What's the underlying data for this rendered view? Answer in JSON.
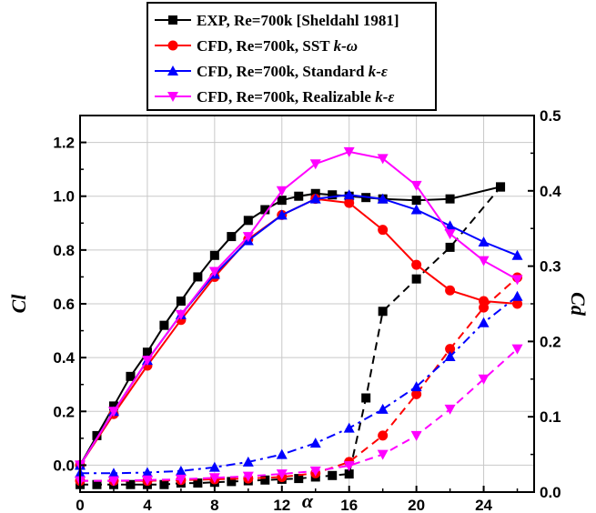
{
  "chart_data": {
    "type": "line",
    "xlabel": "α",
    "ylabel": "Cl",
    "y2label": "Cd",
    "xlim": [
      0,
      27
    ],
    "ylim": [
      -0.1,
      1.3
    ],
    "y2lim": [
      0,
      0.5
    ],
    "x_ticks": [
      0,
      4,
      8,
      12,
      16,
      20,
      24
    ],
    "x_minor_ticks": [
      2,
      6,
      10,
      14,
      18,
      22,
      26
    ],
    "y_ticks": [
      0.0,
      0.2,
      0.4,
      0.6,
      0.8,
      1.0,
      1.2
    ],
    "y2_ticks": [
      0.0,
      0.1,
      0.2,
      0.3,
      0.4,
      0.5
    ],
    "grid": true,
    "legend_position": "top-center",
    "legend": [
      {
        "prefix": "EXP, Re=700k [Sheldahl 1981]",
        "model": "",
        "color": "#000000",
        "marker": "square"
      },
      {
        "prefix": "CFD, Re=700k, SST ",
        "model": "k-ω",
        "color": "#ff0000",
        "marker": "circle"
      },
      {
        "prefix": "CFD, Re=700k, Standard ",
        "model": "k-ε",
        "color": "#0000ff",
        "marker": "triangle-up"
      },
      {
        "prefix": "CFD, Re=700k, Realizable ",
        "model": "k-ε",
        "color": "#ff00ff",
        "marker": "triangle-down"
      }
    ],
    "series": [
      {
        "key": "exp_cl",
        "axis": "left",
        "style": "solid",
        "color": "#000000",
        "marker": "square",
        "x": [
          0,
          1,
          2,
          3,
          4,
          5,
          6,
          7,
          8,
          9,
          10,
          11,
          12,
          13,
          14,
          15,
          16,
          17,
          18,
          20,
          22,
          25
        ],
        "y": [
          0.0,
          0.11,
          0.22,
          0.33,
          0.42,
          0.52,
          0.61,
          0.7,
          0.78,
          0.85,
          0.91,
          0.95,
          0.985,
          1.0,
          1.01,
          1.005,
          1.0,
          0.995,
          0.99,
          0.985,
          0.99,
          1.035
        ]
      },
      {
        "key": "exp_cd",
        "axis": "right",
        "style": "dashed",
        "color": "#000000",
        "marker": "square",
        "x": [
          0,
          1,
          2,
          3,
          4,
          5,
          6,
          7,
          8,
          9,
          10,
          11,
          12,
          13,
          14,
          15,
          16,
          17,
          18,
          20,
          22,
          25
        ],
        "y": [
          0.01,
          0.01,
          0.01,
          0.01,
          0.01,
          0.01,
          0.012,
          0.012,
          0.013,
          0.014,
          0.015,
          0.016,
          0.017,
          0.018,
          0.02,
          0.022,
          0.024,
          0.125,
          0.24,
          0.283,
          0.325,
          0.405
        ]
      },
      {
        "key": "sst_cl",
        "axis": "left",
        "style": "solid",
        "color": "#ff0000",
        "marker": "circle",
        "x": [
          0,
          2,
          4,
          6,
          8,
          10,
          12,
          14,
          16,
          18,
          20,
          22,
          24,
          26
        ],
        "y": [
          0.0,
          0.19,
          0.37,
          0.54,
          0.7,
          0.84,
          0.93,
          0.99,
          0.975,
          0.875,
          0.745,
          0.65,
          0.61,
          0.6
        ]
      },
      {
        "key": "sst_cd",
        "axis": "right",
        "style": "dashed",
        "color": "#ff0000",
        "marker": "circle",
        "x": [
          0,
          2,
          4,
          6,
          8,
          10,
          12,
          14,
          16,
          18,
          20,
          22,
          24,
          26
        ],
        "y": [
          0.015,
          0.015,
          0.015,
          0.016,
          0.017,
          0.018,
          0.02,
          0.025,
          0.04,
          0.075,
          0.13,
          0.19,
          0.245,
          0.285
        ]
      },
      {
        "key": "std_cl",
        "axis": "left",
        "style": "solid",
        "color": "#0000ff",
        "marker": "triangle-up",
        "x": [
          0,
          2,
          4,
          6,
          8,
          10,
          12,
          14,
          16,
          18,
          20,
          22,
          24,
          26
        ],
        "y": [
          0.0,
          0.2,
          0.39,
          0.56,
          0.71,
          0.835,
          0.93,
          0.99,
          1.005,
          0.99,
          0.95,
          0.89,
          0.83,
          0.78
        ]
      },
      {
        "key": "std_cd",
        "axis": "right",
        "style": "dashdot",
        "color": "#0000ff",
        "marker": "triangle-up",
        "x": [
          0,
          2,
          4,
          6,
          8,
          10,
          12,
          14,
          16,
          18,
          20,
          22,
          24,
          26
        ],
        "y": [
          0.025,
          0.025,
          0.026,
          0.028,
          0.033,
          0.04,
          0.05,
          0.065,
          0.085,
          0.11,
          0.14,
          0.18,
          0.225,
          0.26
        ]
      },
      {
        "key": "real_cl",
        "axis": "left",
        "style": "solid",
        "color": "#ff00ff",
        "marker": "triangle-down",
        "x": [
          0,
          2,
          4,
          6,
          8,
          10,
          12,
          14,
          16,
          18,
          20,
          22,
          24,
          26
        ],
        "y": [
          0.0,
          0.2,
          0.39,
          0.56,
          0.72,
          0.85,
          1.02,
          1.12,
          1.165,
          1.14,
          1.04,
          0.86,
          0.76,
          0.69
        ]
      },
      {
        "key": "real_cd",
        "axis": "right",
        "style": "dashed",
        "color": "#ff00ff",
        "marker": "triangle-down",
        "x": [
          0,
          2,
          4,
          6,
          8,
          10,
          12,
          14,
          16,
          18,
          20,
          22,
          24,
          26
        ],
        "y": [
          0.015,
          0.015,
          0.016,
          0.017,
          0.019,
          0.021,
          0.024,
          0.028,
          0.035,
          0.05,
          0.075,
          0.11,
          0.15,
          0.19
        ]
      }
    ]
  }
}
